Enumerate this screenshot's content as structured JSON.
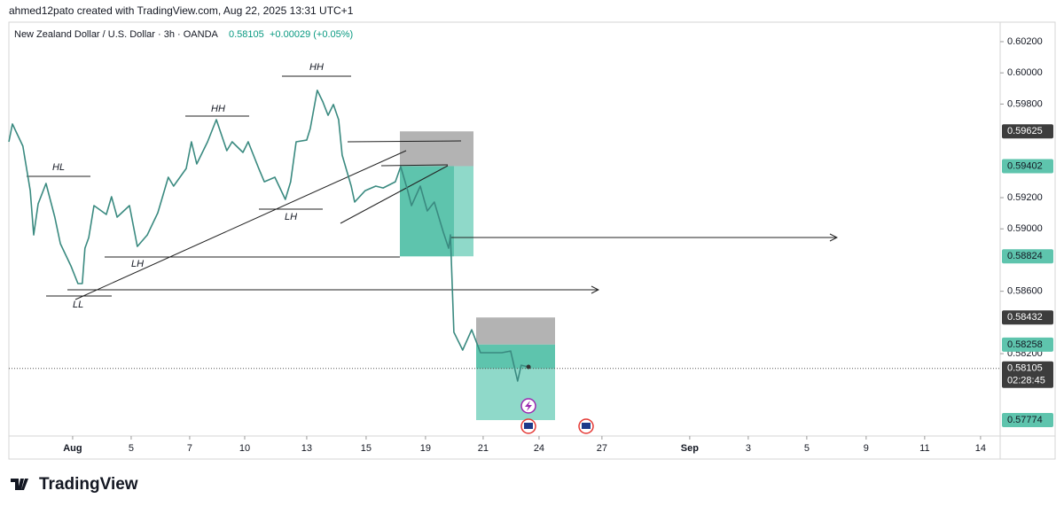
{
  "credit": "ahmed12pato created with TradingView.com, Aug 22, 2025 13:31 UTC+1",
  "brand": "TradingView",
  "chart_data": {
    "type": "line",
    "title": "New Zealand Dollar / U.S. Dollar · 3h · OANDA",
    "last_price": 0.58105,
    "change": "+0.00029 (+0.05%)",
    "countdown": "02:28:45",
    "grid": false,
    "xlim": [
      -2.18,
      31.7
    ],
    "ylim": [
      0.57672,
      0.60325
    ],
    "xticks": [
      {
        "value": 0,
        "label": "Aug"
      },
      {
        "value": 2,
        "label": "5"
      },
      {
        "value": 4,
        "label": "7"
      },
      {
        "value": 5.88,
        "label": "10"
      },
      {
        "value": 8,
        "label": "13"
      },
      {
        "value": 10.03,
        "label": "15"
      },
      {
        "value": 12.06,
        "label": "19"
      },
      {
        "value": 14.03,
        "label": "21"
      },
      {
        "value": 15.94,
        "label": "24"
      },
      {
        "value": 18.09,
        "label": "27"
      },
      {
        "value": 21.09,
        "label": "Sep"
      },
      {
        "value": 23.09,
        "label": "3"
      },
      {
        "value": 25.09,
        "label": "5"
      },
      {
        "value": 27.12,
        "label": "9"
      },
      {
        "value": 29.12,
        "label": "11"
      },
      {
        "value": 31.03,
        "label": "14"
      }
    ],
    "yticks": [
      {
        "value": 0.602,
        "label": "0.60200"
      },
      {
        "value": 0.6,
        "label": "0.60000"
      },
      {
        "value": 0.598,
        "label": "0.59800"
      },
      {
        "value": 0.592,
        "label": "0.59200"
      },
      {
        "value": 0.59,
        "label": "0.59000"
      },
      {
        "value": 0.586,
        "label": "0.58600"
      },
      {
        "value": 0.582,
        "label": "0.58200"
      }
    ],
    "series": [
      {
        "name": "NZDUSD",
        "color": "#3a8a80",
        "x": [
          -2.18,
          -2.06,
          -1.7,
          -1.45,
          -1.33,
          -1.18,
          -0.91,
          -0.61,
          -0.42,
          -0.06,
          0.18,
          0.33,
          0.42,
          0.55,
          0.73,
          1.15,
          1.33,
          1.52,
          1.94,
          2.21,
          2.55,
          2.91,
          3.27,
          3.45,
          3.88,
          4.06,
          4.24,
          4.61,
          4.91,
          5.27,
          5.45,
          5.82,
          6.0,
          6.36,
          6.55,
          6.91,
          7.27,
          7.45,
          7.64,
          8.0,
          8.12,
          8.36,
          8.55,
          8.73,
          8.91,
          9.09,
          9.21,
          9.52,
          9.64,
          10.0,
          10.36,
          10.61,
          11.03,
          11.21,
          11.45,
          11.58,
          11.88,
          12.12,
          12.36,
          12.67,
          12.85,
          12.91,
          13.03,
          13.33,
          13.64,
          13.94,
          14.3,
          14.67,
          14.97,
          15.21,
          15.33,
          15.58
        ],
        "values": [
          0.59558,
          0.59672,
          0.5953,
          0.59245,
          0.58961,
          0.5916,
          0.59291,
          0.59075,
          0.58905,
          0.58762,
          0.58649,
          0.58649,
          0.58876,
          0.58944,
          0.59149,
          0.59092,
          0.59206,
          0.59075,
          0.59149,
          0.58887,
          0.58961,
          0.59103,
          0.59331,
          0.59274,
          0.59387,
          0.59558,
          0.59416,
          0.59558,
          0.597,
          0.59501,
          0.59558,
          0.5949,
          0.59558,
          0.59387,
          0.59302,
          0.59331,
          0.59189,
          0.59302,
          0.59558,
          0.59569,
          0.59643,
          0.59888,
          0.59814,
          0.59728,
          0.59797,
          0.597,
          0.59473,
          0.59274,
          0.59172,
          0.59245,
          0.59274,
          0.59262,
          0.59302,
          0.59399,
          0.59245,
          0.59149,
          0.59274,
          0.59115,
          0.59172,
          0.58978,
          0.58876,
          0.58961,
          0.58337,
          0.58223,
          0.58353,
          0.58206,
          0.58206,
          0.58206,
          0.58217,
          0.58024,
          0.58126,
          0.58115
        ]
      }
    ],
    "positions": [
      {
        "stop": 0.59625,
        "entry": 0.59402,
        "target": 0.58824
      },
      {
        "stop": 0.58432,
        "entry": 0.58258,
        "target": 0.57774
      }
    ],
    "annotations": [
      "HL",
      "HH",
      "HH",
      "LH",
      "LH",
      "LL"
    ]
  }
}
